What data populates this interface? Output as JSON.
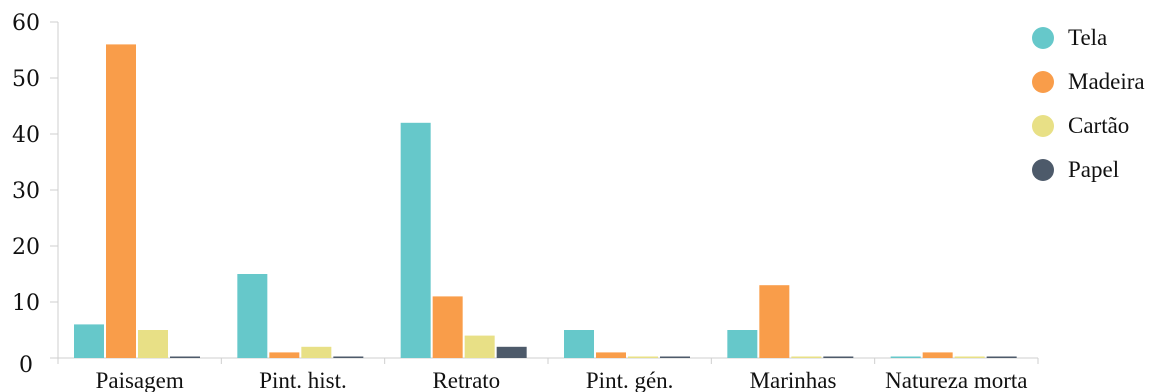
{
  "chart_data": {
    "type": "bar",
    "categories": [
      "Paisagem",
      "Pint. hist.",
      "Retrato",
      "Pint. gén.",
      "Marinhas",
      "Natureza morta"
    ],
    "series": [
      {
        "name": "Tela",
        "color": "#66c8ca",
        "values": [
          6,
          15,
          42,
          5,
          5,
          0
        ]
      },
      {
        "name": "Madeira",
        "color": "#f99d4a",
        "values": [
          56,
          1,
          11,
          1,
          13,
          1
        ]
      },
      {
        "name": "Cartão",
        "color": "#e8e086",
        "values": [
          5,
          2,
          4,
          0,
          0,
          0
        ]
      },
      {
        "name": "Papel",
        "color": "#4d5a6a",
        "values": [
          0,
          0,
          2,
          0,
          0,
          0
        ]
      }
    ],
    "yticks": [
      "0",
      "10",
      "20",
      "30",
      "40",
      "50",
      "60"
    ],
    "ylim": [
      0,
      60
    ],
    "grid": false,
    "legend_position": "top-right",
    "title": "",
    "xlabel": "",
    "ylabel": ""
  }
}
